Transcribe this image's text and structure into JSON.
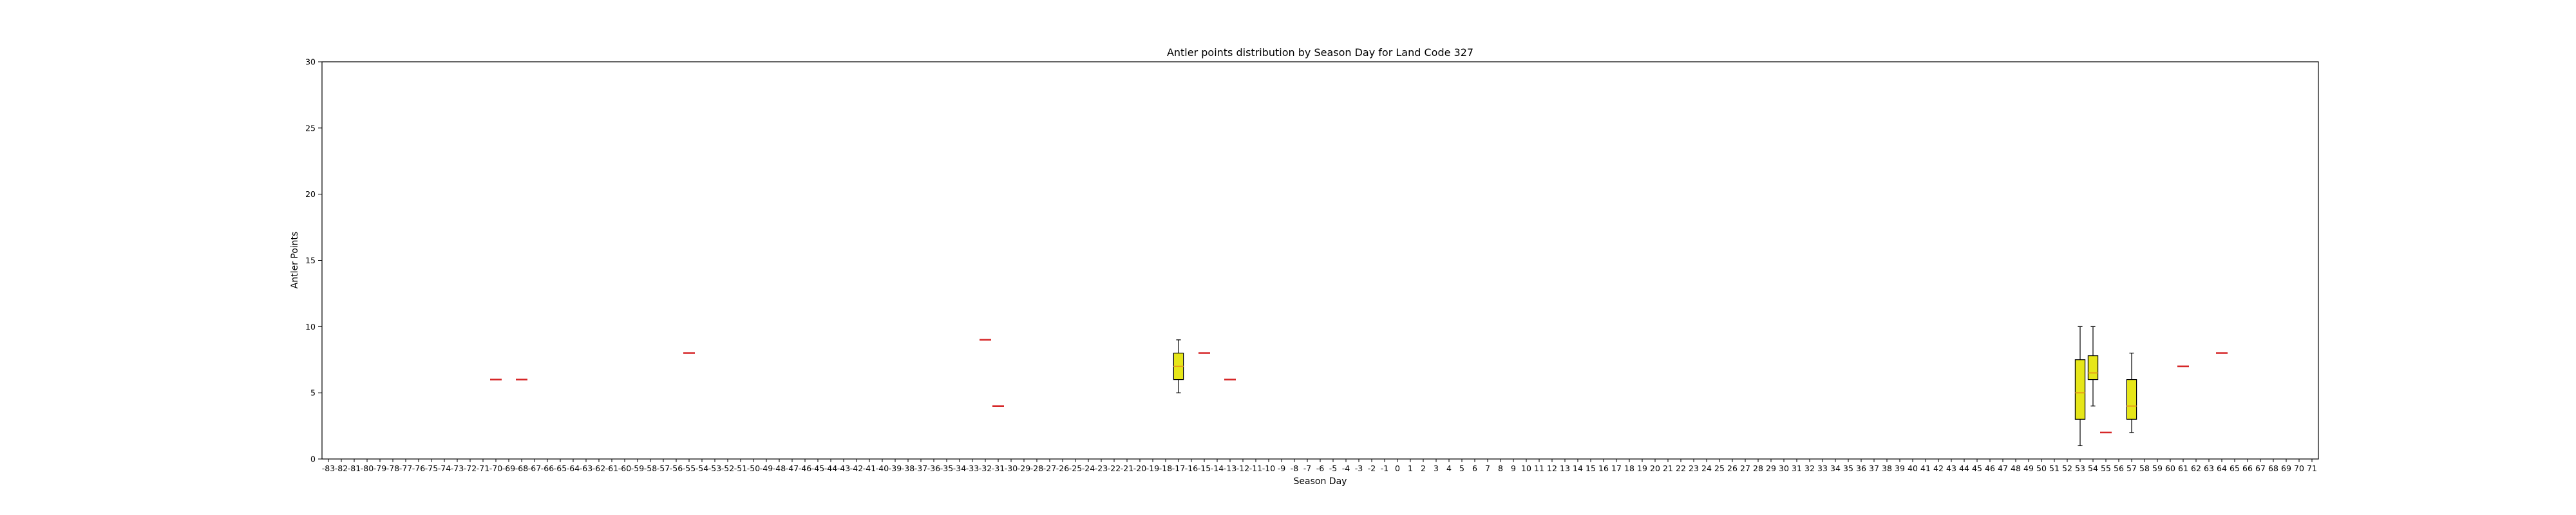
{
  "chart_data": {
    "type": "box",
    "title": "Antler points distribution by Season Day for Land Code 327",
    "xlabel": "Season Day",
    "ylabel": "Antler Points",
    "ylim": [
      0,
      30
    ],
    "yticks": [
      0,
      5,
      10,
      15,
      20,
      25,
      30
    ],
    "x_categories_range": [
      -83,
      71
    ],
    "grid": false,
    "colors": {
      "box_fill": "#e6e619",
      "median": "#e6a31a",
      "whisker": "#000000",
      "single_point": "#d62728",
      "axis": "#000000"
    },
    "boxes": [
      {
        "day": 53,
        "min": 1,
        "q1": 3,
        "median": 5,
        "q3": 7.5,
        "max": 10
      },
      {
        "day": 54,
        "min": 4,
        "q1": 6,
        "median": 6.5,
        "q3": 7.8,
        "max": 10
      },
      {
        "day": 57,
        "min": 2,
        "q1": 3,
        "median": 4,
        "q3": 6,
        "max": 8
      },
      {
        "day": -17,
        "min": 5,
        "q1": 6,
        "median": 7,
        "q3": 8,
        "max": 9
      }
    ],
    "single_points": [
      {
        "day": -70,
        "value": 6
      },
      {
        "day": -68,
        "value": 6
      },
      {
        "day": -55,
        "value": 8
      },
      {
        "day": -32,
        "value": 9
      },
      {
        "day": -31,
        "value": 4
      },
      {
        "day": -15,
        "value": 8
      },
      {
        "day": -13,
        "value": 6
      },
      {
        "day": 55,
        "value": 2
      },
      {
        "day": 61,
        "value": 7
      },
      {
        "day": 64,
        "value": 8
      }
    ]
  }
}
